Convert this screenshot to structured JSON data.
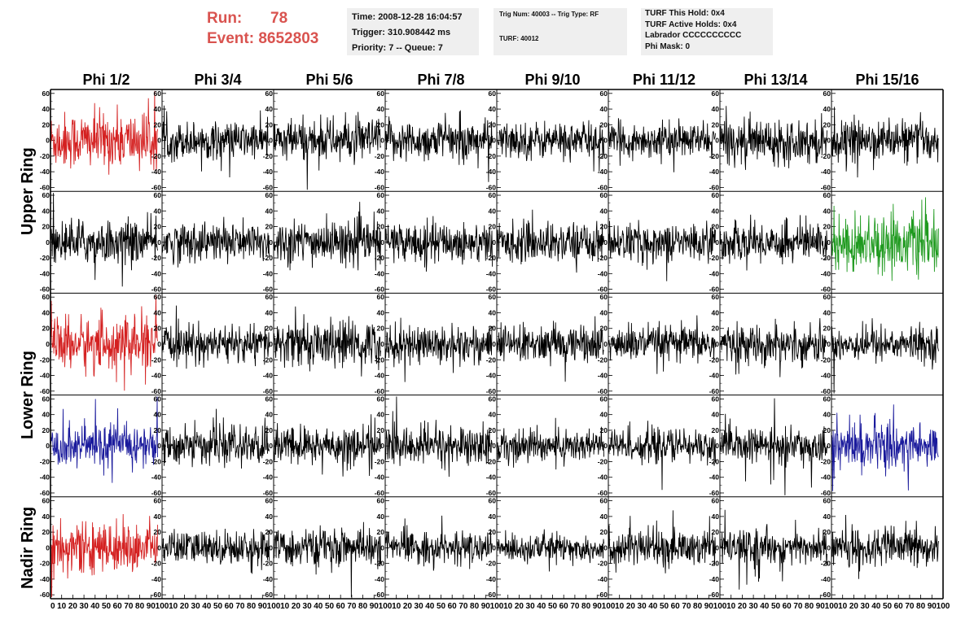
{
  "header": {
    "run_label": "Run:",
    "run_value": "78",
    "event_label": "Event:",
    "event_value": "8652803",
    "time": "Time: 2008-12-28 16:04:57",
    "trigger": "Trigger: 310.908442 ms",
    "priority": "Priority: 7 -- Queue: 7",
    "trig_num": "Trig Num: 40003 -- Trig Type: RF",
    "turf": "TURF: 40012",
    "turf_this_hold": "TURF This Hold: 0x4",
    "turf_active_holds": "TURF Active Holds: 0x4",
    "labrador": "Labrador CCCCCCCCCC",
    "phi_mask": "Phi Mask: 0"
  },
  "columns": [
    "Phi 1/2",
    "Phi 3/4",
    "Phi 5/6",
    "Phi 7/8",
    "Phi 9/10",
    "Phi 11/12",
    "Phi 13/14",
    "Phi 15/16"
  ],
  "ring_labels": [
    {
      "label": "Upper Ring",
      "rows": [
        0,
        1
      ]
    },
    {
      "label": "Lower Ring",
      "rows": [
        2,
        3
      ]
    },
    {
      "label": "Nadir Ring",
      "rows": [
        4,
        4
      ]
    }
  ],
  "colors": {
    "black": "#000000",
    "red": "#d42020",
    "green": "#1f9a1f",
    "blue": "#1a1a9c"
  },
  "chart_data": {
    "type": "line",
    "xlim": [
      0,
      100
    ],
    "ylim": [
      -65,
      65
    ],
    "y_ticks": [
      60,
      40,
      20,
      0,
      -20,
      -40,
      -60
    ],
    "x_tick_labels": [
      "0",
      "10",
      "20",
      "30",
      "40",
      "50",
      "60",
      "70",
      "80",
      "90",
      "100"
    ],
    "sample_count": 256,
    "trace_x_range": [
      0,
      96
    ],
    "rows": [
      {
        "colors": [
          "red",
          "black",
          "black",
          "black",
          "black",
          "black",
          "black",
          "black"
        ],
        "amplitudes": [
          20,
          13,
          15,
          14,
          13,
          12,
          15,
          14
        ]
      },
      {
        "colors": [
          "black",
          "black",
          "black",
          "black",
          "black",
          "black",
          "black",
          "green"
        ],
        "amplitudes": [
          15,
          14,
          15,
          14,
          14,
          13,
          14,
          20
        ]
      },
      {
        "colors": [
          "red",
          "black",
          "black",
          "black",
          "black",
          "black",
          "black",
          "black"
        ],
        "amplitudes": [
          19,
          13,
          16,
          14,
          13,
          13,
          13,
          12
        ]
      },
      {
        "colors": [
          "blue",
          "black",
          "black",
          "black",
          "black",
          "black",
          "black",
          "blue"
        ],
        "amplitudes": [
          15,
          13,
          14,
          14,
          12,
          12,
          12,
          17
        ]
      },
      {
        "colors": [
          "red",
          "black",
          "black",
          "black",
          "black",
          "black",
          "black",
          "black"
        ],
        "amplitudes": [
          17,
          12,
          13,
          11,
          10,
          13,
          12,
          13
        ]
      }
    ]
  }
}
